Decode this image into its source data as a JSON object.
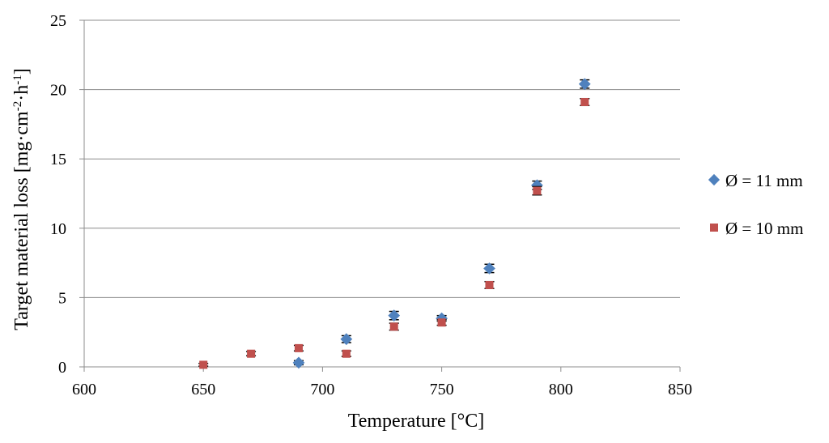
{
  "chart_data": {
    "type": "scatter",
    "title": "",
    "xlabel": "Temperature [°C]",
    "ylabel_parts": [
      {
        "text": "Target material loss [mg·cm",
        "sup": false
      },
      {
        "text": "-2",
        "sup": true
      },
      {
        "text": "·h",
        "sup": false
      },
      {
        "text": "-1",
        "sup": true
      },
      {
        "text": "]",
        "sup": false
      }
    ],
    "xlim": [
      600,
      850
    ],
    "ylim": [
      0,
      25
    ],
    "x_ticks": [
      600,
      650,
      700,
      750,
      800,
      850
    ],
    "y_ticks": [
      0,
      5,
      10,
      15,
      20,
      25
    ],
    "grid": "horizontal",
    "legend_position": "right",
    "series": [
      {
        "name": "Ø = 11 mm",
        "marker": "diamond",
        "color": "#4f81bd",
        "x": [
          690,
          710,
          730,
          750,
          770,
          790,
          810
        ],
        "y": [
          0.3,
          2.0,
          3.7,
          3.5,
          7.1,
          13.1,
          20.4
        ],
        "err": [
          0.15,
          0.25,
          0.3,
          0.2,
          0.3,
          0.3,
          0.3
        ]
      },
      {
        "name": "Ø = 10 mm",
        "marker": "square",
        "color": "#c0504d",
        "x": [
          650,
          670,
          690,
          710,
          730,
          750,
          770,
          790,
          810
        ],
        "y": [
          0.15,
          0.95,
          1.35,
          0.95,
          2.9,
          3.2,
          5.9,
          12.7,
          19.1
        ],
        "err": [
          0.1,
          0.15,
          0.2,
          0.2,
          0.25,
          0.2,
          0.25,
          0.3,
          0.25
        ]
      }
    ]
  }
}
